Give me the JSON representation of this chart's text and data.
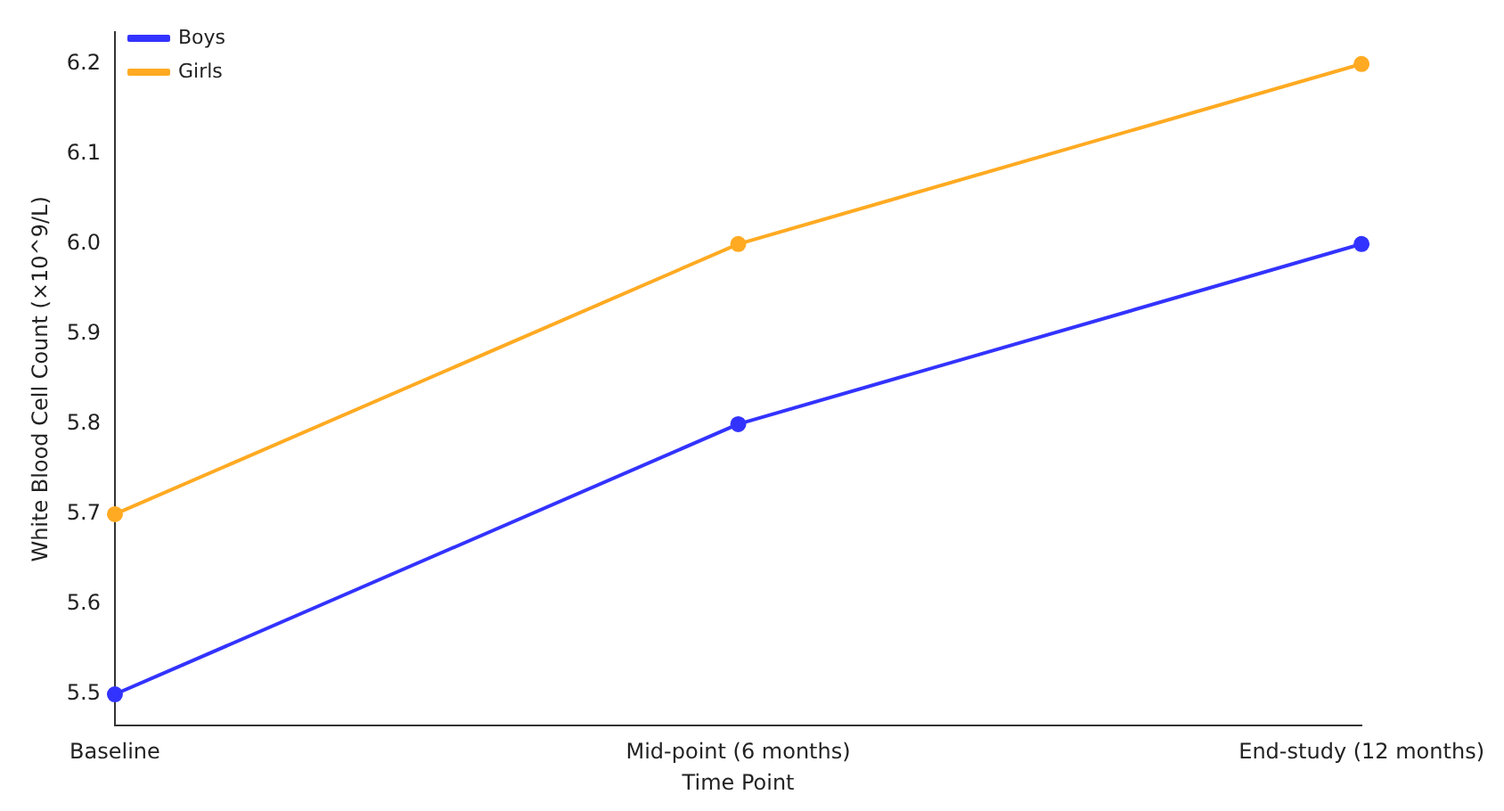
{
  "chart_data": {
    "type": "line",
    "xlabel": "Time Point",
    "ylabel": "White Blood Cell Count (×10^9/L)",
    "categories": [
      "Baseline",
      "Mid-point (6 months)",
      "End-study (12 months)"
    ],
    "series": [
      {
        "name": "Boys",
        "color": "#3333ff",
        "values": [
          5.5,
          5.8,
          6.0
        ]
      },
      {
        "name": "Girls",
        "color": "#ffaa22",
        "values": [
          5.7,
          6.0,
          6.2
        ]
      }
    ],
    "ylim": [
      5.465,
      6.235
    ],
    "yticks": [
      5.5,
      5.6,
      5.7,
      5.8,
      5.9,
      {
        "value": 6.0,
        "label": "6.0"
      },
      6.1,
      6.2
    ],
    "grid": false,
    "legend": "top left",
    "marker": "circle",
    "line_style": "solid"
  }
}
